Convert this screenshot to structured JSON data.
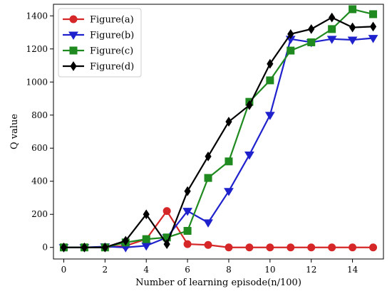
{
  "chart_data": {
    "type": "line",
    "xlabel": "Number of learning episode(n/100)",
    "ylabel": "Q value",
    "xlim": [
      -0.5,
      15.5
    ],
    "ylim": [
      -70,
      1470
    ],
    "xticks": [
      0,
      2,
      4,
      6,
      8,
      10,
      12,
      14
    ],
    "yticks": [
      0,
      200,
      400,
      600,
      800,
      1000,
      1200,
      1400
    ],
    "grid": false,
    "legend_position": "top-left",
    "x": [
      0,
      1,
      2,
      3,
      4,
      5,
      6,
      7,
      8,
      9,
      10,
      11,
      12,
      13,
      14,
      15
    ],
    "series": [
      {
        "name": "Figure(a)",
        "color": "#d62728",
        "marker": "circle",
        "values": [
          0,
          0,
          0,
          10,
          50,
          220,
          20,
          15,
          0,
          0,
          0,
          0,
          0,
          0,
          0,
          0
        ]
      },
      {
        "name": "Figure(b)",
        "color": "#1f22cc",
        "marker": "triangle-down",
        "values": [
          0,
          0,
          5,
          0,
          10,
          60,
          220,
          150,
          340,
          560,
          800,
          1260,
          1240,
          1260,
          1255,
          1265
        ]
      },
      {
        "name": "Figure(c)",
        "color": "#1f8a1f",
        "marker": "square",
        "values": [
          0,
          0,
          0,
          30,
          50,
          60,
          100,
          420,
          520,
          880,
          1010,
          1190,
          1240,
          1320,
          1440,
          1410
        ]
      },
      {
        "name": "Figure(d)",
        "color": "#000000",
        "marker": "diamond",
        "values": [
          0,
          0,
          0,
          40,
          200,
          20,
          340,
          550,
          760,
          860,
          1110,
          1290,
          1320,
          1390,
          1330,
          1335
        ]
      }
    ]
  }
}
